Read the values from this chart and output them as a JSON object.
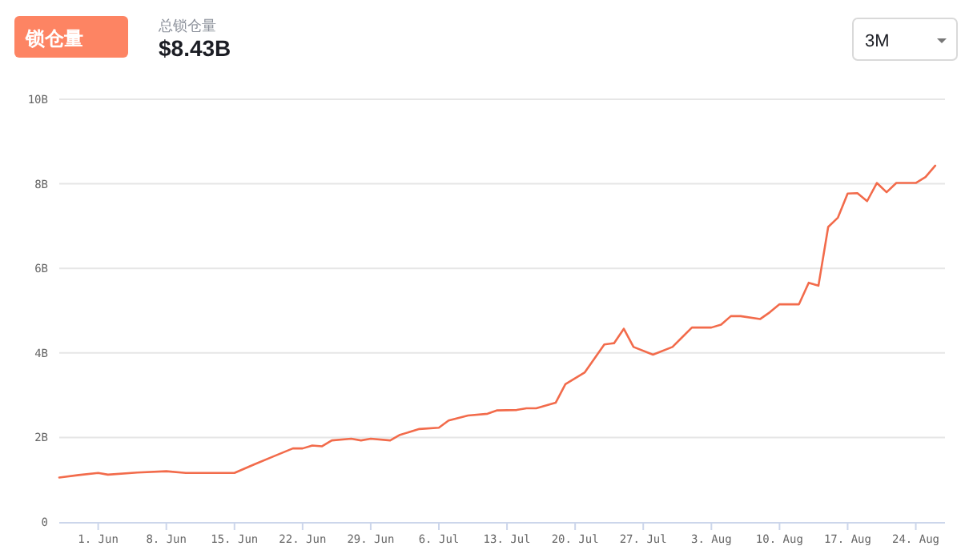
{
  "chart_data": {
    "type": "line",
    "title": "总锁仓量",
    "subtitle": "$8.43B",
    "annotations": [
      "锁仓量",
      "3M"
    ],
    "x": [
      "--05-28",
      "--05-30",
      "--06-01",
      "--06-02",
      "--06-05",
      "--06-08",
      "--06-10",
      "--06-15",
      "--06-17",
      "--06-19",
      "--06-21",
      "--06-22",
      "--06-23",
      "--06-24",
      "--06-25",
      "--06-27",
      "--06-28",
      "--06-29",
      "--07-01",
      "--07-02",
      "--07-04",
      "--07-06",
      "--07-07",
      "--07-09",
      "--07-11",
      "--07-12",
      "--07-14",
      "--07-15",
      "--07-16",
      "--07-18",
      "--07-19",
      "--07-21",
      "--07-23",
      "--07-24",
      "--07-25",
      "--07-26",
      "--07-28",
      "--07-30",
      "--07-31",
      "--08-01",
      "--08-03",
      "--08-04",
      "--08-05",
      "--08-06",
      "--08-08",
      "--08-09",
      "--08-10",
      "--08-12",
      "--08-13",
      "--08-14",
      "--08-15",
      "--08-16",
      "--08-17",
      "--08-18",
      "--08-19",
      "--08-20",
      "--08-21",
      "--08-22",
      "--08-24",
      "--08-25",
      "--08-26"
    ],
    "series": [
      {
        "color": "#f26b4b",
        "values": [
          1.05,
          1.11,
          1.16,
          1.12,
          1.17,
          1.2,
          1.16,
          1.16,
          1.36,
          1.55,
          1.74,
          1.74,
          1.81,
          1.79,
          1.93,
          1.97,
          1.93,
          1.97,
          1.93,
          2.06,
          2.2,
          2.23,
          2.4,
          2.52,
          2.56,
          2.64,
          2.65,
          2.69,
          2.69,
          2.82,
          3.26,
          3.54,
          4.2,
          4.23,
          4.57,
          4.14,
          3.96,
          4.14,
          4.37,
          4.6,
          4.6,
          4.67,
          4.87,
          4.87,
          4.8,
          4.96,
          5.15,
          5.15,
          5.66,
          5.59,
          6.98,
          7.2,
          7.77,
          7.78,
          7.59,
          8.02,
          7.8,
          8.02,
          8.02,
          8.16,
          8.43
        ]
      }
    ],
    "xlim": [
      "--05-28",
      "--08-27"
    ],
    "xticks": [
      {
        "value": "--06-01",
        "label": "1. Jun"
      },
      {
        "value": "--06-08",
        "label": "8. Jun"
      },
      {
        "value": "--06-15",
        "label": "15. Jun"
      },
      {
        "value": "--06-22",
        "label": "22. Jun"
      },
      {
        "value": "--06-29",
        "label": "29. Jun"
      },
      {
        "value": "--07-06",
        "label": "6. Jul"
      },
      {
        "value": "--07-13",
        "label": "13. Jul"
      },
      {
        "value": "--07-20",
        "label": "20. Jul"
      },
      {
        "value": "--07-27",
        "label": "27. Jul"
      },
      {
        "value": "--08-03",
        "label": "3. Aug"
      },
      {
        "value": "--08-10",
        "label": "10. Aug"
      },
      {
        "value": "--08-17",
        "label": "17. Aug"
      },
      {
        "value": "--08-24",
        "label": "24. Aug"
      }
    ],
    "ylim": [
      0,
      10
    ],
    "yticks": [
      0,
      {
        "value": 2,
        "label": "2B"
      },
      {
        "value": 4,
        "label": "4B"
      },
      {
        "value": 6,
        "label": "6B"
      },
      {
        "value": 8,
        "label": "8B"
      },
      {
        "value": 10,
        "label": "10B"
      }
    ],
    "grid": "y",
    "marker": "none",
    "line_style": "solid"
  }
}
